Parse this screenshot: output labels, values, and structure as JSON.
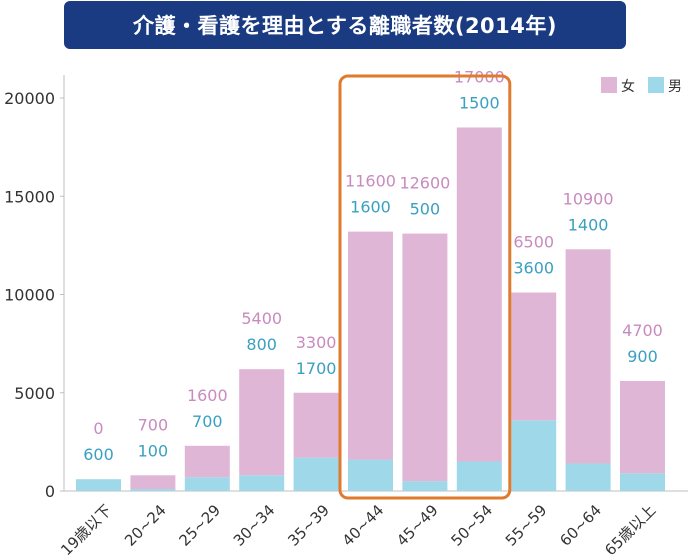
{
  "chart_data": {
    "type": "bar",
    "stacked": true,
    "title": "介護・看護を理由とする離職者数(2014年)",
    "categories": [
      "19歳以下",
      "20~24",
      "25~29",
      "30~34",
      "35~39",
      "40~44",
      "45~49",
      "50~54",
      "55~59",
      "60~64",
      "65歳以上"
    ],
    "series": [
      {
        "name": "男",
        "color": "#9fd8e8",
        "label_color": "#3aa0c0",
        "values": [
          600,
          100,
          700,
          800,
          1700,
          1600,
          500,
          1500,
          3600,
          1400,
          900
        ]
      },
      {
        "name": "女",
        "color": "#e0b6d6",
        "label_color": "#c98abf",
        "values": [
          0,
          700,
          1600,
          5400,
          3300,
          11600,
          12600,
          17000,
          6500,
          10900,
          4700
        ]
      }
    ],
    "ylim": [
      0,
      20000
    ],
    "yticks": [
      "0",
      "5000",
      "10000",
      "15000",
      "20000"
    ],
    "xlabel": "",
    "ylabel": "",
    "legend": "top-right",
    "highlight": {
      "categories": [
        "40~44",
        "45~49",
        "50~54"
      ],
      "color": "#e07a2e"
    },
    "grid": false
  }
}
